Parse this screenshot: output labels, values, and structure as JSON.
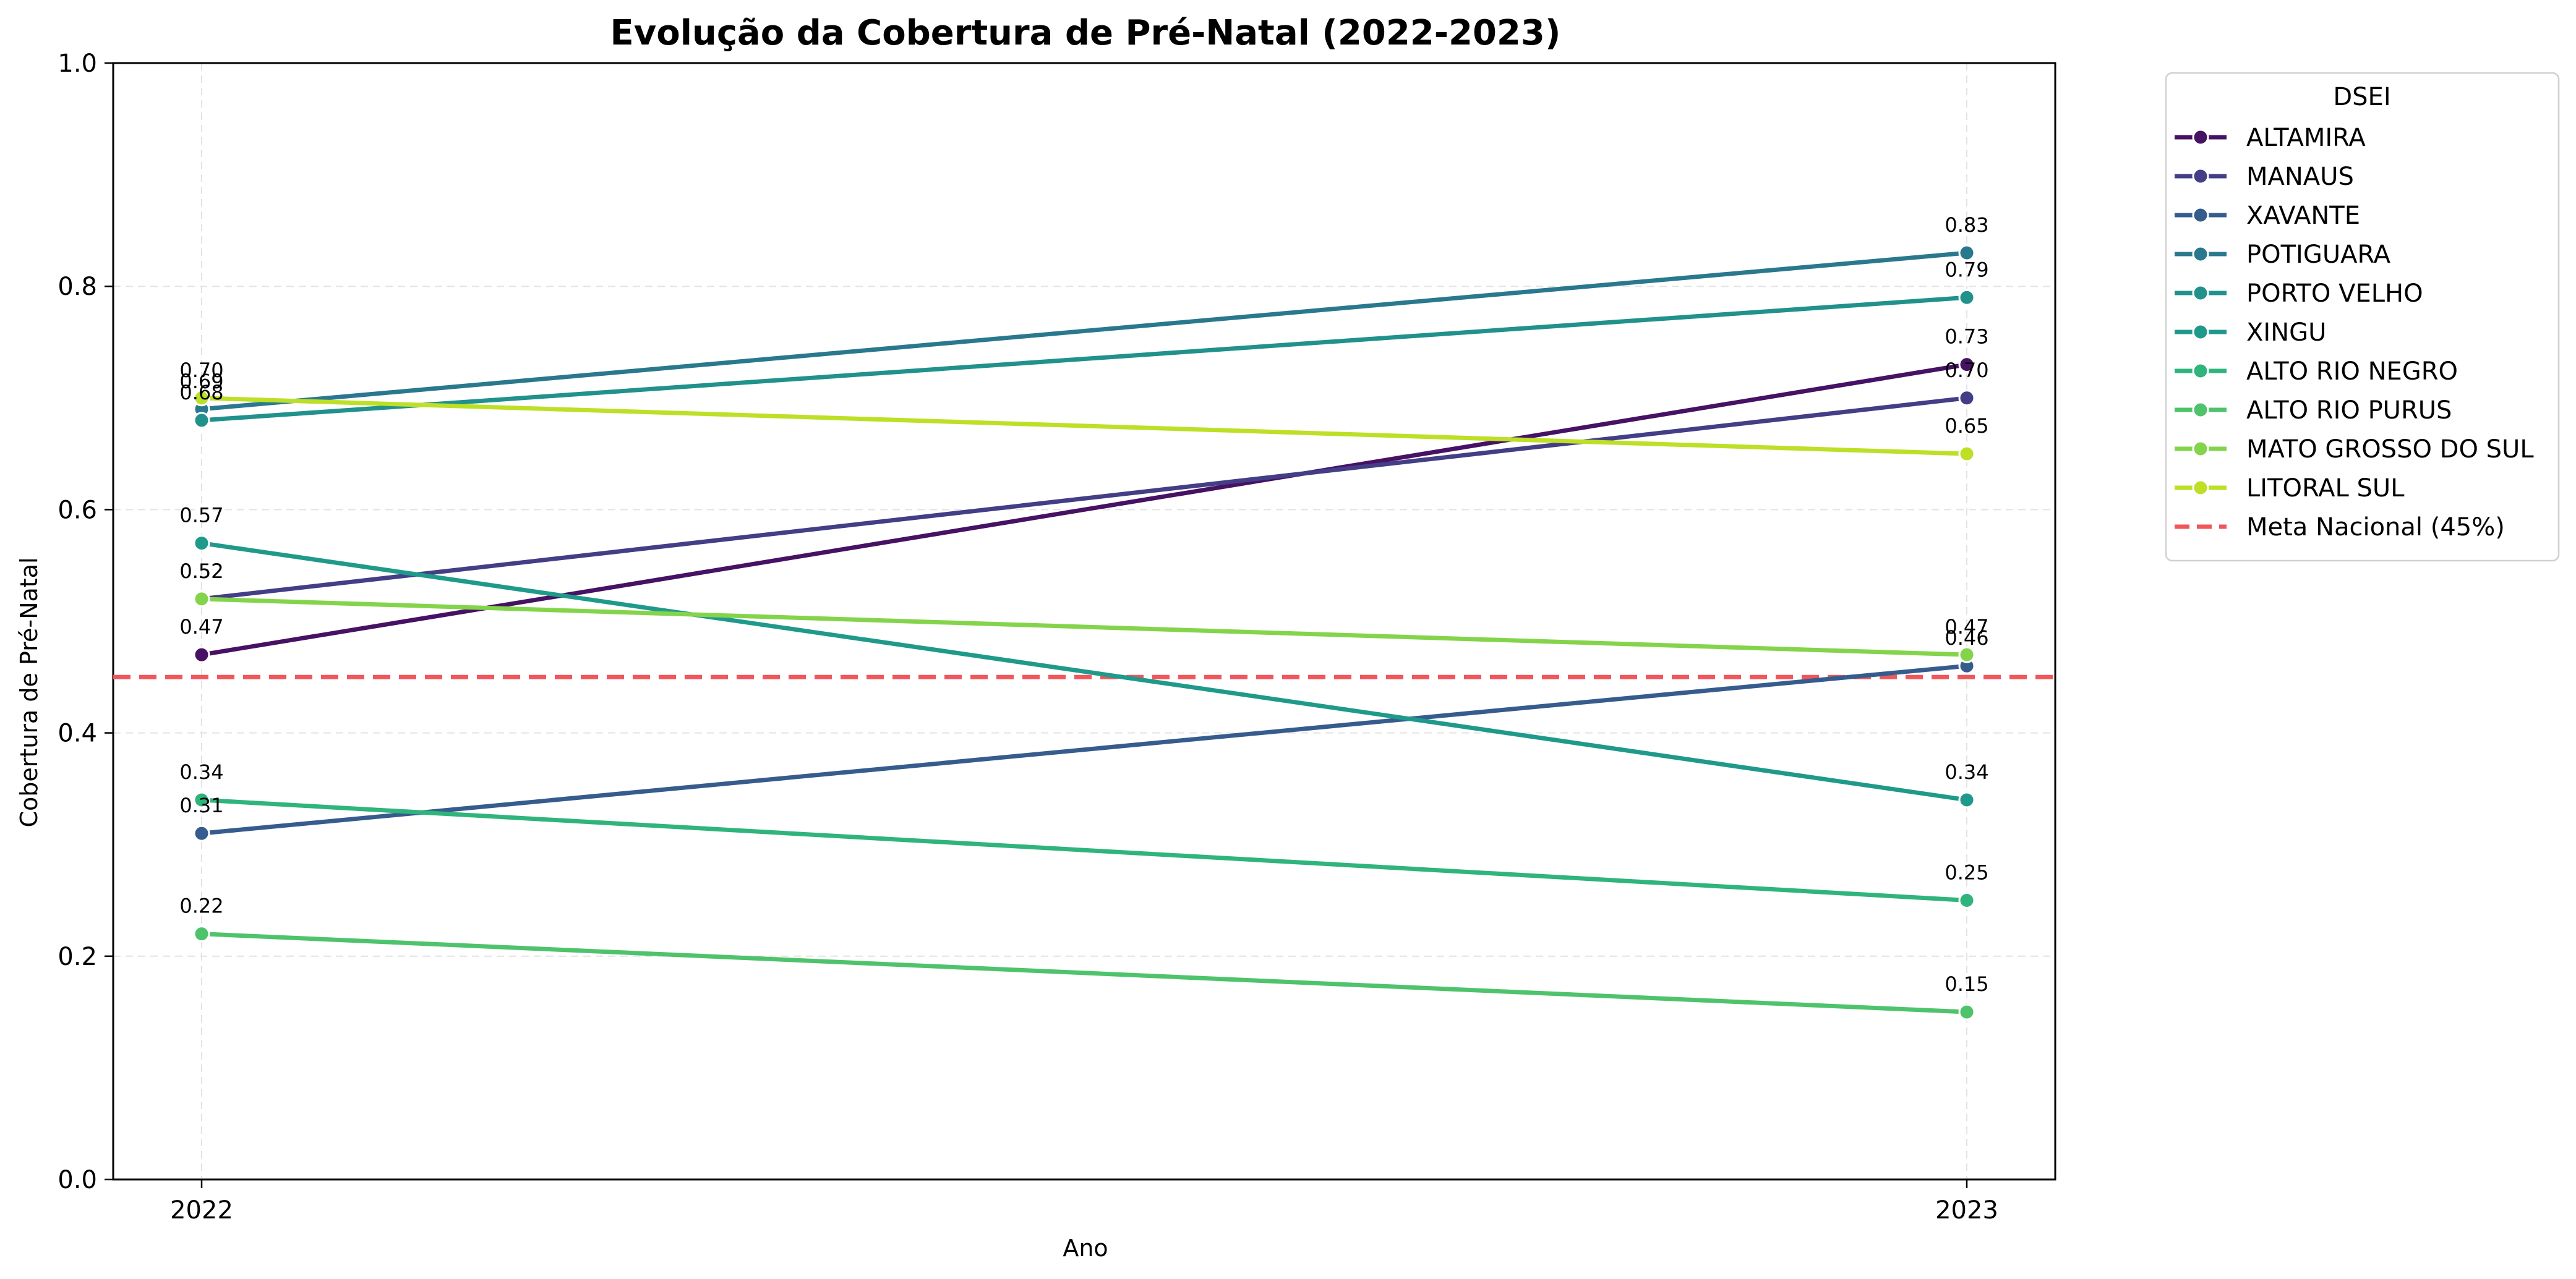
{
  "chart_data": {
    "type": "line",
    "title": "Evolução da Cobertura de Pré-Natal (2022-2023)",
    "xlabel": "Ano",
    "ylabel": "Cobertura de Pré-Natal",
    "categories": [
      "2022",
      "2023"
    ],
    "ylim": [
      0.0,
      1.0
    ],
    "yticks": [
      "0.0",
      "0.2",
      "0.4",
      "0.6",
      "0.8",
      "1.0"
    ],
    "grid": true,
    "legend_title": "DSEI",
    "legend_position": "outside-top-right",
    "series": [
      {
        "name": "ALTAMIRA",
        "color": "#471164",
        "values": [
          0.47,
          0.73
        ],
        "labels": [
          "0.47",
          "0.73"
        ]
      },
      {
        "name": "MANAUS",
        "color": "#433e85",
        "values": [
          0.52,
          0.7
        ],
        "labels": [
          "0.52",
          "0.70"
        ]
      },
      {
        "name": "XAVANTE",
        "color": "#365c8d",
        "values": [
          0.31,
          0.46
        ],
        "labels": [
          "0.31",
          "0.46"
        ]
      },
      {
        "name": "POTIGUARA",
        "color": "#2a788e",
        "values": [
          0.69,
          0.83
        ],
        "labels": [
          "0.69",
          "0.83"
        ]
      },
      {
        "name": "PORTO VELHO",
        "color": "#21918c",
        "values": [
          0.68,
          0.79
        ],
        "labels": [
          "0.68",
          "0.79"
        ]
      },
      {
        "name": "XINGU",
        "color": "#1f9a8a",
        "values": [
          0.57,
          0.34
        ],
        "labels": [
          "0.57",
          "0.34"
        ]
      },
      {
        "name": "ALTO RIO NEGRO",
        "color": "#2fb47c",
        "values": [
          0.34,
          0.25
        ],
        "labels": [
          "0.34",
          "0.25"
        ]
      },
      {
        "name": "ALTO RIO PURUS",
        "color": "#4ec36b",
        "values": [
          0.22,
          0.15
        ],
        "labels": [
          "0.22",
          "0.15"
        ]
      },
      {
        "name": "MATO GROSSO DO SUL",
        "color": "#84d44b",
        "values": [
          0.52,
          0.47
        ],
        "labels": [
          "0.52",
          "0.47"
        ]
      },
      {
        "name": "LITORAL SUL",
        "color": "#bddf26",
        "values": [
          0.7,
          0.65
        ],
        "labels": [
          "0.70",
          "0.65"
        ]
      }
    ],
    "reference_line": {
      "name": "Meta Nacional (45%)",
      "value": 0.45,
      "color": "#f0565a",
      "style": "dashed"
    }
  }
}
